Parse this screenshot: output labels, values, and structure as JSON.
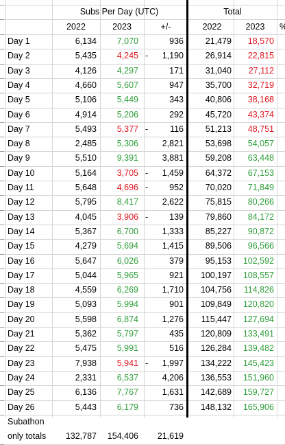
{
  "colors": {
    "green": "#2e9e3a",
    "red": "#e0141e",
    "black": "#000000"
  },
  "headers": {
    "subs_title": "Subs Per Day (UTC)",
    "total_title": "Total",
    "col_2022": "2022",
    "col_2023": "2023",
    "col_diff": "+/-",
    "col_total_2022": "2022",
    "col_total_2023": "2023",
    "col_pct": "%"
  },
  "rows": [
    {
      "label": "Day 1",
      "s2022": "6,134",
      "s2023": "7,070",
      "c2023": "green",
      "sign": "",
      "diff": "936",
      "t2022": "21,479",
      "t2023": "18,570",
      "ct": "red"
    },
    {
      "label": "Day 2",
      "s2022": "5,435",
      "s2023": "4,245",
      "c2023": "red",
      "sign": "-",
      "diff": "1,190",
      "t2022": "26,914",
      "t2023": "22,815",
      "ct": "red"
    },
    {
      "label": "Day 3",
      "s2022": "4,126",
      "s2023": "4,297",
      "c2023": "green",
      "sign": "",
      "diff": "171",
      "t2022": "31,040",
      "t2023": "27,112",
      "ct": "red"
    },
    {
      "label": "Day 4",
      "s2022": "4,660",
      "s2023": "5,607",
      "c2023": "green",
      "sign": "",
      "diff": "947",
      "t2022": "35,700",
      "t2023": "32,719",
      "ct": "red"
    },
    {
      "label": "Day 5",
      "s2022": "5,106",
      "s2023": "5,449",
      "c2023": "green",
      "sign": "",
      "diff": "343",
      "t2022": "40,806",
      "t2023": "38,168",
      "ct": "red"
    },
    {
      "label": "Day 6",
      "s2022": "4,914",
      "s2023": "5,206",
      "c2023": "green",
      "sign": "",
      "diff": "292",
      "t2022": "45,720",
      "t2023": "43,374",
      "ct": "red"
    },
    {
      "label": "Day 7",
      "s2022": "5,493",
      "s2023": "5,377",
      "c2023": "red",
      "sign": "-",
      "diff": "116",
      "t2022": "51,213",
      "t2023": "48,751",
      "ct": "red"
    },
    {
      "label": "Day 8",
      "s2022": "2,485",
      "s2023": "5,306",
      "c2023": "green",
      "sign": "",
      "diff": "2,821",
      "t2022": "53,698",
      "t2023": "54,057",
      "ct": "green"
    },
    {
      "label": "Day 9",
      "s2022": "5,510",
      "s2023": "9,391",
      "c2023": "green",
      "sign": "",
      "diff": "3,881",
      "t2022": "59,208",
      "t2023": "63,448",
      "ct": "green"
    },
    {
      "label": "Day 10",
      "s2022": "5,164",
      "s2023": "3,705",
      "c2023": "red",
      "sign": "-",
      "diff": "1,459",
      "t2022": "64,372",
      "t2023": "67,153",
      "ct": "green"
    },
    {
      "label": "Day 11",
      "s2022": "5,648",
      "s2023": "4,696",
      "c2023": "red",
      "sign": "-",
      "diff": "952",
      "t2022": "70,020",
      "t2023": "71,849",
      "ct": "green"
    },
    {
      "label": "Day 12",
      "s2022": "5,795",
      "s2023": "8,417",
      "c2023": "green",
      "sign": "",
      "diff": "2,622",
      "t2022": "75,815",
      "t2023": "80,266",
      "ct": "green"
    },
    {
      "label": "Day 13",
      "s2022": "4,045",
      "s2023": "3,906",
      "c2023": "red",
      "sign": "-",
      "diff": "139",
      "t2022": "79,860",
      "t2023": "84,172",
      "ct": "green"
    },
    {
      "label": "Day 14",
      "s2022": "5,367",
      "s2023": "6,700",
      "c2023": "green",
      "sign": "",
      "diff": "1,333",
      "t2022": "85,227",
      "t2023": "90,872",
      "ct": "green"
    },
    {
      "label": "Day 15",
      "s2022": "4,279",
      "s2023": "5,694",
      "c2023": "green",
      "sign": "",
      "diff": "1,415",
      "t2022": "89,506",
      "t2023": "96,566",
      "ct": "green"
    },
    {
      "label": "Day 16",
      "s2022": "5,647",
      "s2023": "6,026",
      "c2023": "green",
      "sign": "",
      "diff": "379",
      "t2022": "95,153",
      "t2023": "102,592",
      "ct": "green"
    },
    {
      "label": "Day 17",
      "s2022": "5,044",
      "s2023": "5,965",
      "c2023": "green",
      "sign": "",
      "diff": "921",
      "t2022": "100,197",
      "t2023": "108,557",
      "ct": "green"
    },
    {
      "label": "Day 18",
      "s2022": "4,559",
      "s2023": "6,269",
      "c2023": "green",
      "sign": "",
      "diff": "1,710",
      "t2022": "104,756",
      "t2023": "114,826",
      "ct": "green"
    },
    {
      "label": "Day 19",
      "s2022": "5,093",
      "s2023": "5,994",
      "c2023": "green",
      "sign": "",
      "diff": "901",
      "t2022": "109,849",
      "t2023": "120,820",
      "ct": "green"
    },
    {
      "label": "Day 20",
      "s2022": "5,598",
      "s2023": "6,874",
      "c2023": "green",
      "sign": "",
      "diff": "1,276",
      "t2022": "115,447",
      "t2023": "127,694",
      "ct": "green"
    },
    {
      "label": "Day 21",
      "s2022": "5,362",
      "s2023": "5,797",
      "c2023": "green",
      "sign": "",
      "diff": "435",
      "t2022": "120,809",
      "t2023": "133,491",
      "ct": "green"
    },
    {
      "label": "Day 22",
      "s2022": "5,475",
      "s2023": "5,991",
      "c2023": "green",
      "sign": "",
      "diff": "516",
      "t2022": "126,284",
      "t2023": "139,482",
      "ct": "green"
    },
    {
      "label": "Day 23",
      "s2022": "7,938",
      "s2023": "5,941",
      "c2023": "red",
      "sign": "-",
      "diff": "1,997",
      "t2022": "134,222",
      "t2023": "145,423",
      "ct": "green"
    },
    {
      "label": "Day 24",
      "s2022": "2,331",
      "s2023": "6,537",
      "c2023": "green",
      "sign": "",
      "diff": "4,206",
      "t2022": "136,553",
      "t2023": "151,960",
      "ct": "green"
    },
    {
      "label": "Day 25",
      "s2022": "6,136",
      "s2023": "7,767",
      "c2023": "green",
      "sign": "",
      "diff": "1,631",
      "t2022": "142,689",
      "t2023": "159,727",
      "ct": "green"
    },
    {
      "label": "Day 26",
      "s2022": "5,443",
      "s2023": "6,179",
      "c2023": "green",
      "sign": "",
      "diff": "736",
      "t2022": "148,132",
      "t2023": "165,906",
      "ct": "green"
    }
  ],
  "totals": {
    "label_line1": "Subathon",
    "label_line2": "only totals",
    "s2022": "132,787",
    "s2023": "154,406",
    "diff": "21,619"
  }
}
